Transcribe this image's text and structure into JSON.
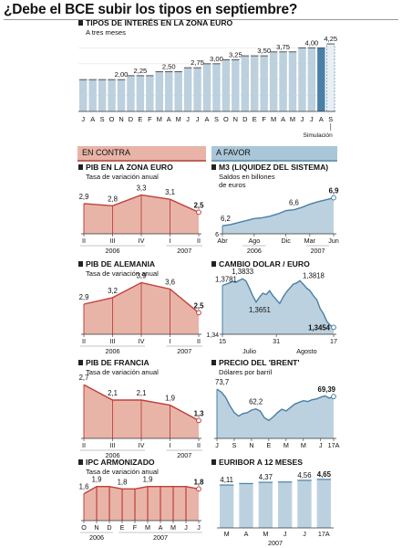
{
  "page": {
    "title": "¿Debe el BCE subir los tipos en septiembre?",
    "section_contra": "EN CONTRA",
    "section_favor": "A FAVOR"
  },
  "colors": {
    "red_fill": "#e8b4a8",
    "red_line": "#c0403a",
    "blue_fill": "#bcd1df",
    "blue_line": "#4a7fa7",
    "gray_bar": "#bcd0de"
  },
  "chart_data": [
    {
      "id": "tipos",
      "type": "bar",
      "title": "TIPOS DE INTERÉS EN LA ZONA EURO",
      "subtitle": "A tres meses",
      "categories": [
        "J",
        "A",
        "S",
        "O",
        "N",
        "D",
        "E",
        "F",
        "M",
        "A",
        "M",
        "J",
        "J",
        "A",
        "S",
        "O",
        "N",
        "D",
        "E",
        "F",
        "M",
        "A",
        "M",
        "J",
        "J",
        "A",
        "S"
      ],
      "values": [
        2.0,
        2.0,
        2.0,
        2.0,
        2.0,
        2.25,
        2.25,
        2.25,
        2.5,
        2.5,
        2.5,
        2.75,
        2.75,
        3.0,
        3.0,
        3.25,
        3.25,
        3.5,
        3.5,
        3.5,
        3.75,
        3.75,
        3.75,
        4.0,
        4.0,
        4.0,
        4.25
      ],
      "value_labels": [
        "",
        "",
        "",
        "",
        "2,00",
        "",
        "2,25",
        "",
        "",
        "2,50",
        "",
        "",
        "2,75",
        "",
        "3,00",
        "",
        "3,25",
        "",
        "",
        "3,50",
        "",
        "3,75",
        "",
        "",
        "4,00",
        "",
        "4,25"
      ],
      "highlight_index": 25,
      "simulated_index": 26,
      "note": "Simulación",
      "ylim": [
        0,
        4.6
      ]
    },
    {
      "id": "pib-zona",
      "type": "area",
      "title": "PIB EN LA ZONA EURO",
      "subtitle": "Tasa de variación anual",
      "x_labels": [
        "II",
        "III",
        "IV",
        "I",
        "II"
      ],
      "year_labels": [
        {
          "text": "2006",
          "span": [
            0,
            2
          ]
        },
        {
          "text": "2007",
          "span": [
            3,
            4
          ]
        }
      ],
      "values": [
        2.9,
        2.8,
        3.3,
        3.1,
        2.5
      ],
      "value_labels": [
        "2,9",
        "2,8",
        "3,3",
        "3,1",
        "2,5"
      ],
      "ylim": [
        1.5,
        3.7
      ]
    },
    {
      "id": "pib-alemania",
      "type": "area",
      "title": "PIB DE ALEMANIA",
      "subtitle": "Tasa de variación anual",
      "x_labels": [
        "II",
        "III",
        "IV",
        "I",
        "II"
      ],
      "year_labels": [
        {
          "text": "2006",
          "span": [
            0,
            2
          ]
        },
        {
          "text": "2007",
          "span": [
            3,
            4
          ]
        }
      ],
      "values": [
        2.9,
        3.2,
        3.9,
        3.6,
        2.5
      ],
      "value_labels": [
        "2,9",
        "3,2",
        "3,9",
        "3,6",
        "2,5"
      ],
      "ylim": [
        1.5,
        4.3
      ]
    },
    {
      "id": "pib-francia",
      "type": "area",
      "title": "PIB DE FRANCIA",
      "subtitle": "Tasa de variación anual",
      "x_labels": [
        "II",
        "III",
        "IV",
        "I",
        "II"
      ],
      "year_labels": [
        {
          "text": "2006",
          "span": [
            0,
            2
          ]
        },
        {
          "text": "2007",
          "span": [
            3,
            4
          ]
        }
      ],
      "values": [
        2.7,
        2.1,
        2.1,
        1.9,
        1.3
      ],
      "value_labels": [
        "2,7",
        "2,1",
        "2,1",
        "1,9",
        "1,3"
      ],
      "ylim": [
        0.6,
        3.1
      ]
    },
    {
      "id": "ipc",
      "type": "area",
      "title": "IPC ARMONIZADO",
      "subtitle": "Tasa de variación anual",
      "x_labels": [
        "O",
        "N",
        "D",
        "E",
        "F",
        "M",
        "A",
        "M",
        "J",
        "J"
      ],
      "year_labels": [
        {
          "text": "2006",
          "span": [
            0,
            2
          ]
        },
        {
          "text": "2007",
          "span": [
            3,
            9
          ]
        }
      ],
      "values": [
        1.6,
        1.9,
        1.9,
        1.8,
        1.8,
        1.9,
        1.9,
        1.9,
        1.9,
        1.8
      ],
      "value_labels": [
        "1,6",
        "1,9",
        "",
        "1,8",
        "",
        "1,9",
        "",
        "",
        "",
        "1,8"
      ],
      "bars": true,
      "ylim": [
        0.5,
        2.3
      ]
    },
    {
      "id": "m3",
      "type": "area",
      "title": "M3 (LIQUIDEZ DEL SISTEMA)",
      "subtitle": "Saldos en billones de euros",
      "x": [
        0,
        1,
        2,
        3,
        4,
        5,
        6,
        7,
        8,
        9,
        10,
        11,
        12,
        13,
        14
      ],
      "x_labels": [
        "Abr",
        "Ago",
        "Dic",
        "Mar",
        "Jun"
      ],
      "x_label_positions": [
        0,
        4,
        8,
        11,
        14
      ],
      "year_labels": [
        {
          "text": "2006",
          "span": [
            3,
            5
          ]
        },
        {
          "text": "2007",
          "span": [
            11,
            13
          ]
        }
      ],
      "values": [
        6.2,
        6.23,
        6.28,
        6.33,
        6.38,
        6.4,
        6.44,
        6.5,
        6.58,
        6.6,
        6.66,
        6.74,
        6.8,
        6.85,
        6.9
      ],
      "value_labels": [
        {
          "i": 0,
          "t": "6,2"
        },
        {
          "i": 9,
          "t": "6,6"
        },
        {
          "i": 14,
          "t": "6,9"
        }
      ],
      "y_axis_label": "6",
      "ylim": [
        6.0,
        7.05
      ]
    },
    {
      "id": "cambio",
      "type": "area",
      "title": "CAMBIO DOLAR / EURO",
      "x_labels": [
        "15",
        "31",
        "17"
      ],
      "x_label_positions": [
        0,
        16,
        33
      ],
      "month_labels": [
        {
          "text": "Julio",
          "at": 8
        },
        {
          "text": "Agosto",
          "at": 25
        }
      ],
      "values": [
        1.3781,
        1.379,
        1.38,
        1.3812,
        1.3805,
        1.382,
        1.3833,
        1.3815,
        1.376,
        1.37,
        1.3651,
        1.369,
        1.372,
        1.371,
        1.374,
        1.37,
        1.367,
        1.364,
        1.369,
        1.373,
        1.376,
        1.379,
        1.38,
        1.3818,
        1.379,
        1.376,
        1.374,
        1.37,
        1.367,
        1.36,
        1.356,
        1.35,
        1.347,
        1.3454
      ],
      "value_labels": [
        {
          "i": 0,
          "t": "1,3781"
        },
        {
          "i": 6,
          "t": "1,3833"
        },
        {
          "i": 10,
          "t": "1,3651"
        },
        {
          "i": 23,
          "t": "1,3818"
        },
        {
          "i": 33,
          "t": "1,3454"
        }
      ],
      "y_axis_label": "1,34",
      "ylim": [
        1.34,
        1.387
      ]
    },
    {
      "id": "brent",
      "type": "area",
      "title": "PRECIO DEL 'BRENT'",
      "subtitle": "Dólares por barril",
      "x_labels": [
        "J",
        "S",
        "N",
        "E",
        "M",
        "M",
        "J",
        "17A"
      ],
      "x_label_positions": [
        0,
        4,
        8,
        12,
        16,
        20,
        24,
        27
      ],
      "values": [
        73.7,
        72.0,
        69.0,
        64.0,
        60.0,
        58.0,
        59.5,
        60.0,
        61.5,
        62.2,
        61.0,
        57.0,
        55.5,
        57.5,
        60.0,
        62.0,
        61.0,
        63.0,
        65.0,
        66.0,
        67.0,
        66.5,
        67.5,
        68.0,
        69.0,
        69.8,
        68.5,
        69.39
      ],
      "value_labels": [
        {
          "i": 0,
          "t": "73,7"
        },
        {
          "i": 9,
          "t": "62,2"
        },
        {
          "i": 27,
          "t": "69,39"
        }
      ],
      "ylim": [
        45,
        78
      ]
    },
    {
      "id": "euribor",
      "type": "bar",
      "title": "EURIBOR A 12 MESES",
      "categories": [
        "M",
        "A",
        "M",
        "J",
        "J",
        "17A"
      ],
      "values": [
        4.11,
        4.25,
        4.37,
        4.4,
        4.56,
        4.65
      ],
      "value_labels": [
        "4,11",
        "",
        "4,37",
        "",
        "4,56",
        "4,65"
      ],
      "year_label": "2007",
      "ylim": [
        0,
        4.9
      ]
    }
  ]
}
